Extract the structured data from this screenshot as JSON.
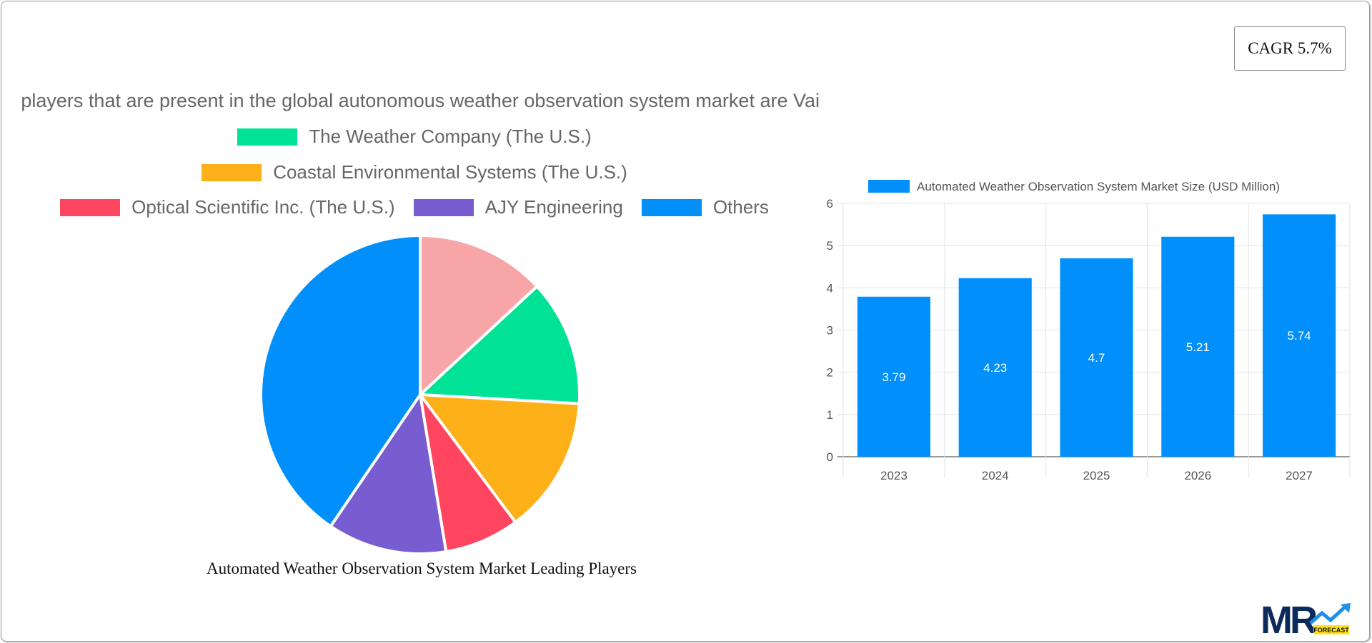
{
  "cagr": {
    "label": "CAGR 5.7%"
  },
  "pie": {
    "title": "Some of the key players that are present in the global autonomous weather observation system market are Vai",
    "caption": "Automated Weather Observation System Market Leading Players",
    "legend": [
      {
        "label": "The Weather Company (The U.S.)",
        "color": "#00e396"
      },
      {
        "label": "Coastal Environmental Systems (The U.S.)",
        "color": "#feb019"
      },
      {
        "label": "Optical Scientific Inc. (The U.S.)",
        "color": "#ff4560"
      },
      {
        "label": "AJY Engineering",
        "color": "#775dd0"
      },
      {
        "label": "Others",
        "color": "#008ffb"
      }
    ]
  },
  "chart_data": [
    {
      "type": "pie",
      "slices": [
        {
          "label": "",
          "value": 13.1,
          "color": "#f8a5a8"
        },
        {
          "label": "The Weather Company (The U.S.)",
          "value": 12.8,
          "color": "#00e396"
        },
        {
          "label": "Coastal Environmental Systems (The U.S.)",
          "value": 13.9,
          "color": "#feb019"
        },
        {
          "label": "Optical Scientific Inc. (The U.S.)",
          "value": 7.6,
          "color": "#ff4560"
        },
        {
          "label": "AJY Engineering",
          "value": 12.1,
          "color": "#775dd0"
        },
        {
          "label": "Others",
          "value": 40.5,
          "color": "#008ffb"
        }
      ],
      "title": "Automated Weather Observation System Market Leading Players"
    },
    {
      "type": "bar",
      "categories": [
        "2023",
        "2024",
        "2025",
        "2026",
        "2027"
      ],
      "series": [
        {
          "name": "Automated Weather Observation System Market Size (USD Million)",
          "values": [
            3.79,
            4.23,
            4.7,
            5.21,
            5.74
          ],
          "color": "#008ffb"
        }
      ],
      "data_labels": [
        "3.79",
        "4.23",
        "4.7",
        "5.21",
        "5.74"
      ],
      "ylim": [
        0,
        6
      ],
      "yticks": [
        "0",
        "1",
        "2",
        "3",
        "4",
        "5",
        "6"
      ],
      "grid": true,
      "legend": "top"
    }
  ],
  "logo": {
    "text": "MR",
    "sub": "FORECAST"
  }
}
